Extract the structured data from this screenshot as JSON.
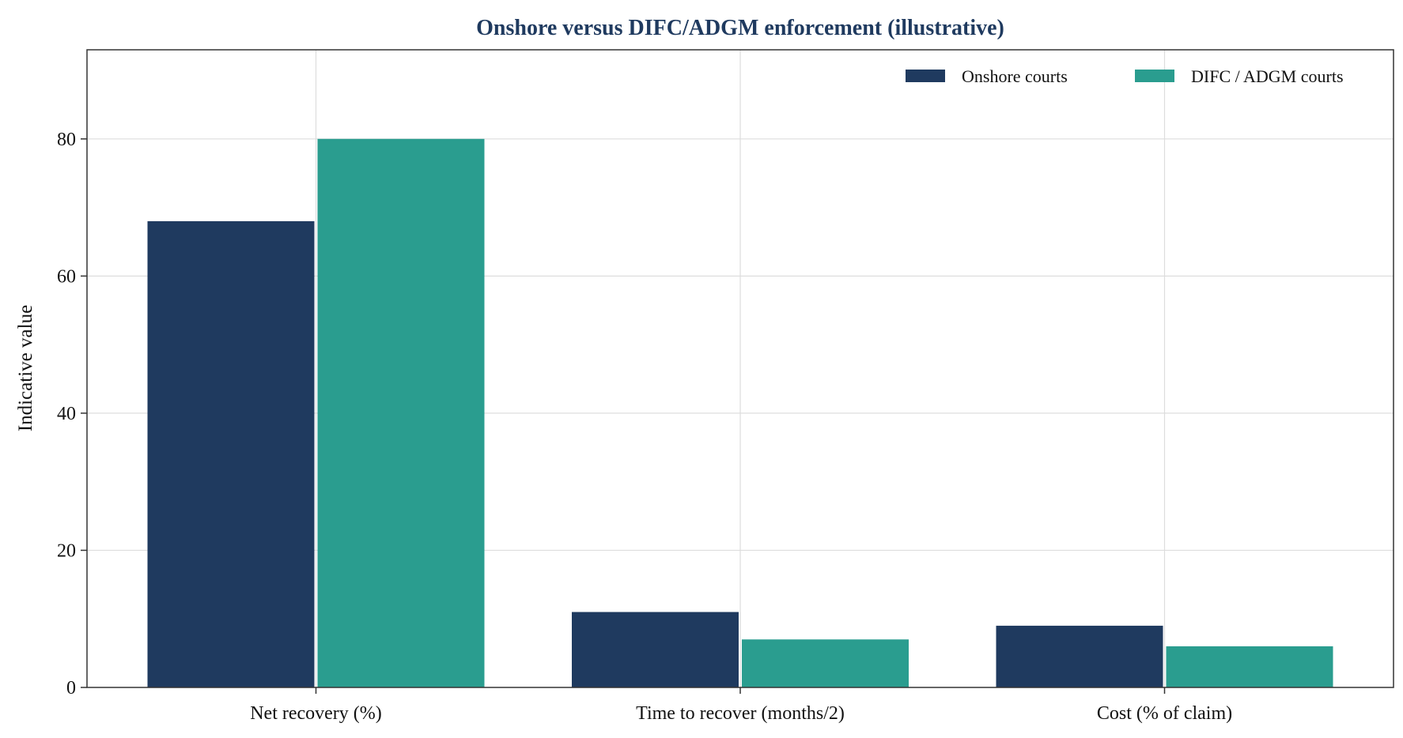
{
  "chart_data": {
    "type": "bar",
    "title": "Onshore versus DIFC/ADGM enforcement (illustrative)",
    "xlabel": "",
    "ylabel": "Indicative value",
    "categories": [
      "Net recovery (%)",
      "Time to recover (months/2)",
      "Cost (% of claim)"
    ],
    "series": [
      {
        "name": "Onshore courts",
        "color": "#1f3a5f",
        "values": [
          68,
          11,
          9
        ]
      },
      {
        "name": "DIFC / ADGM courts",
        "color": "#2a9d8f",
        "values": [
          80,
          7,
          6
        ]
      }
    ],
    "ylim": [
      0,
      93
    ],
    "yticks": [
      0,
      20,
      40,
      60,
      80
    ],
    "grid": true,
    "legend_position": "top-right"
  }
}
